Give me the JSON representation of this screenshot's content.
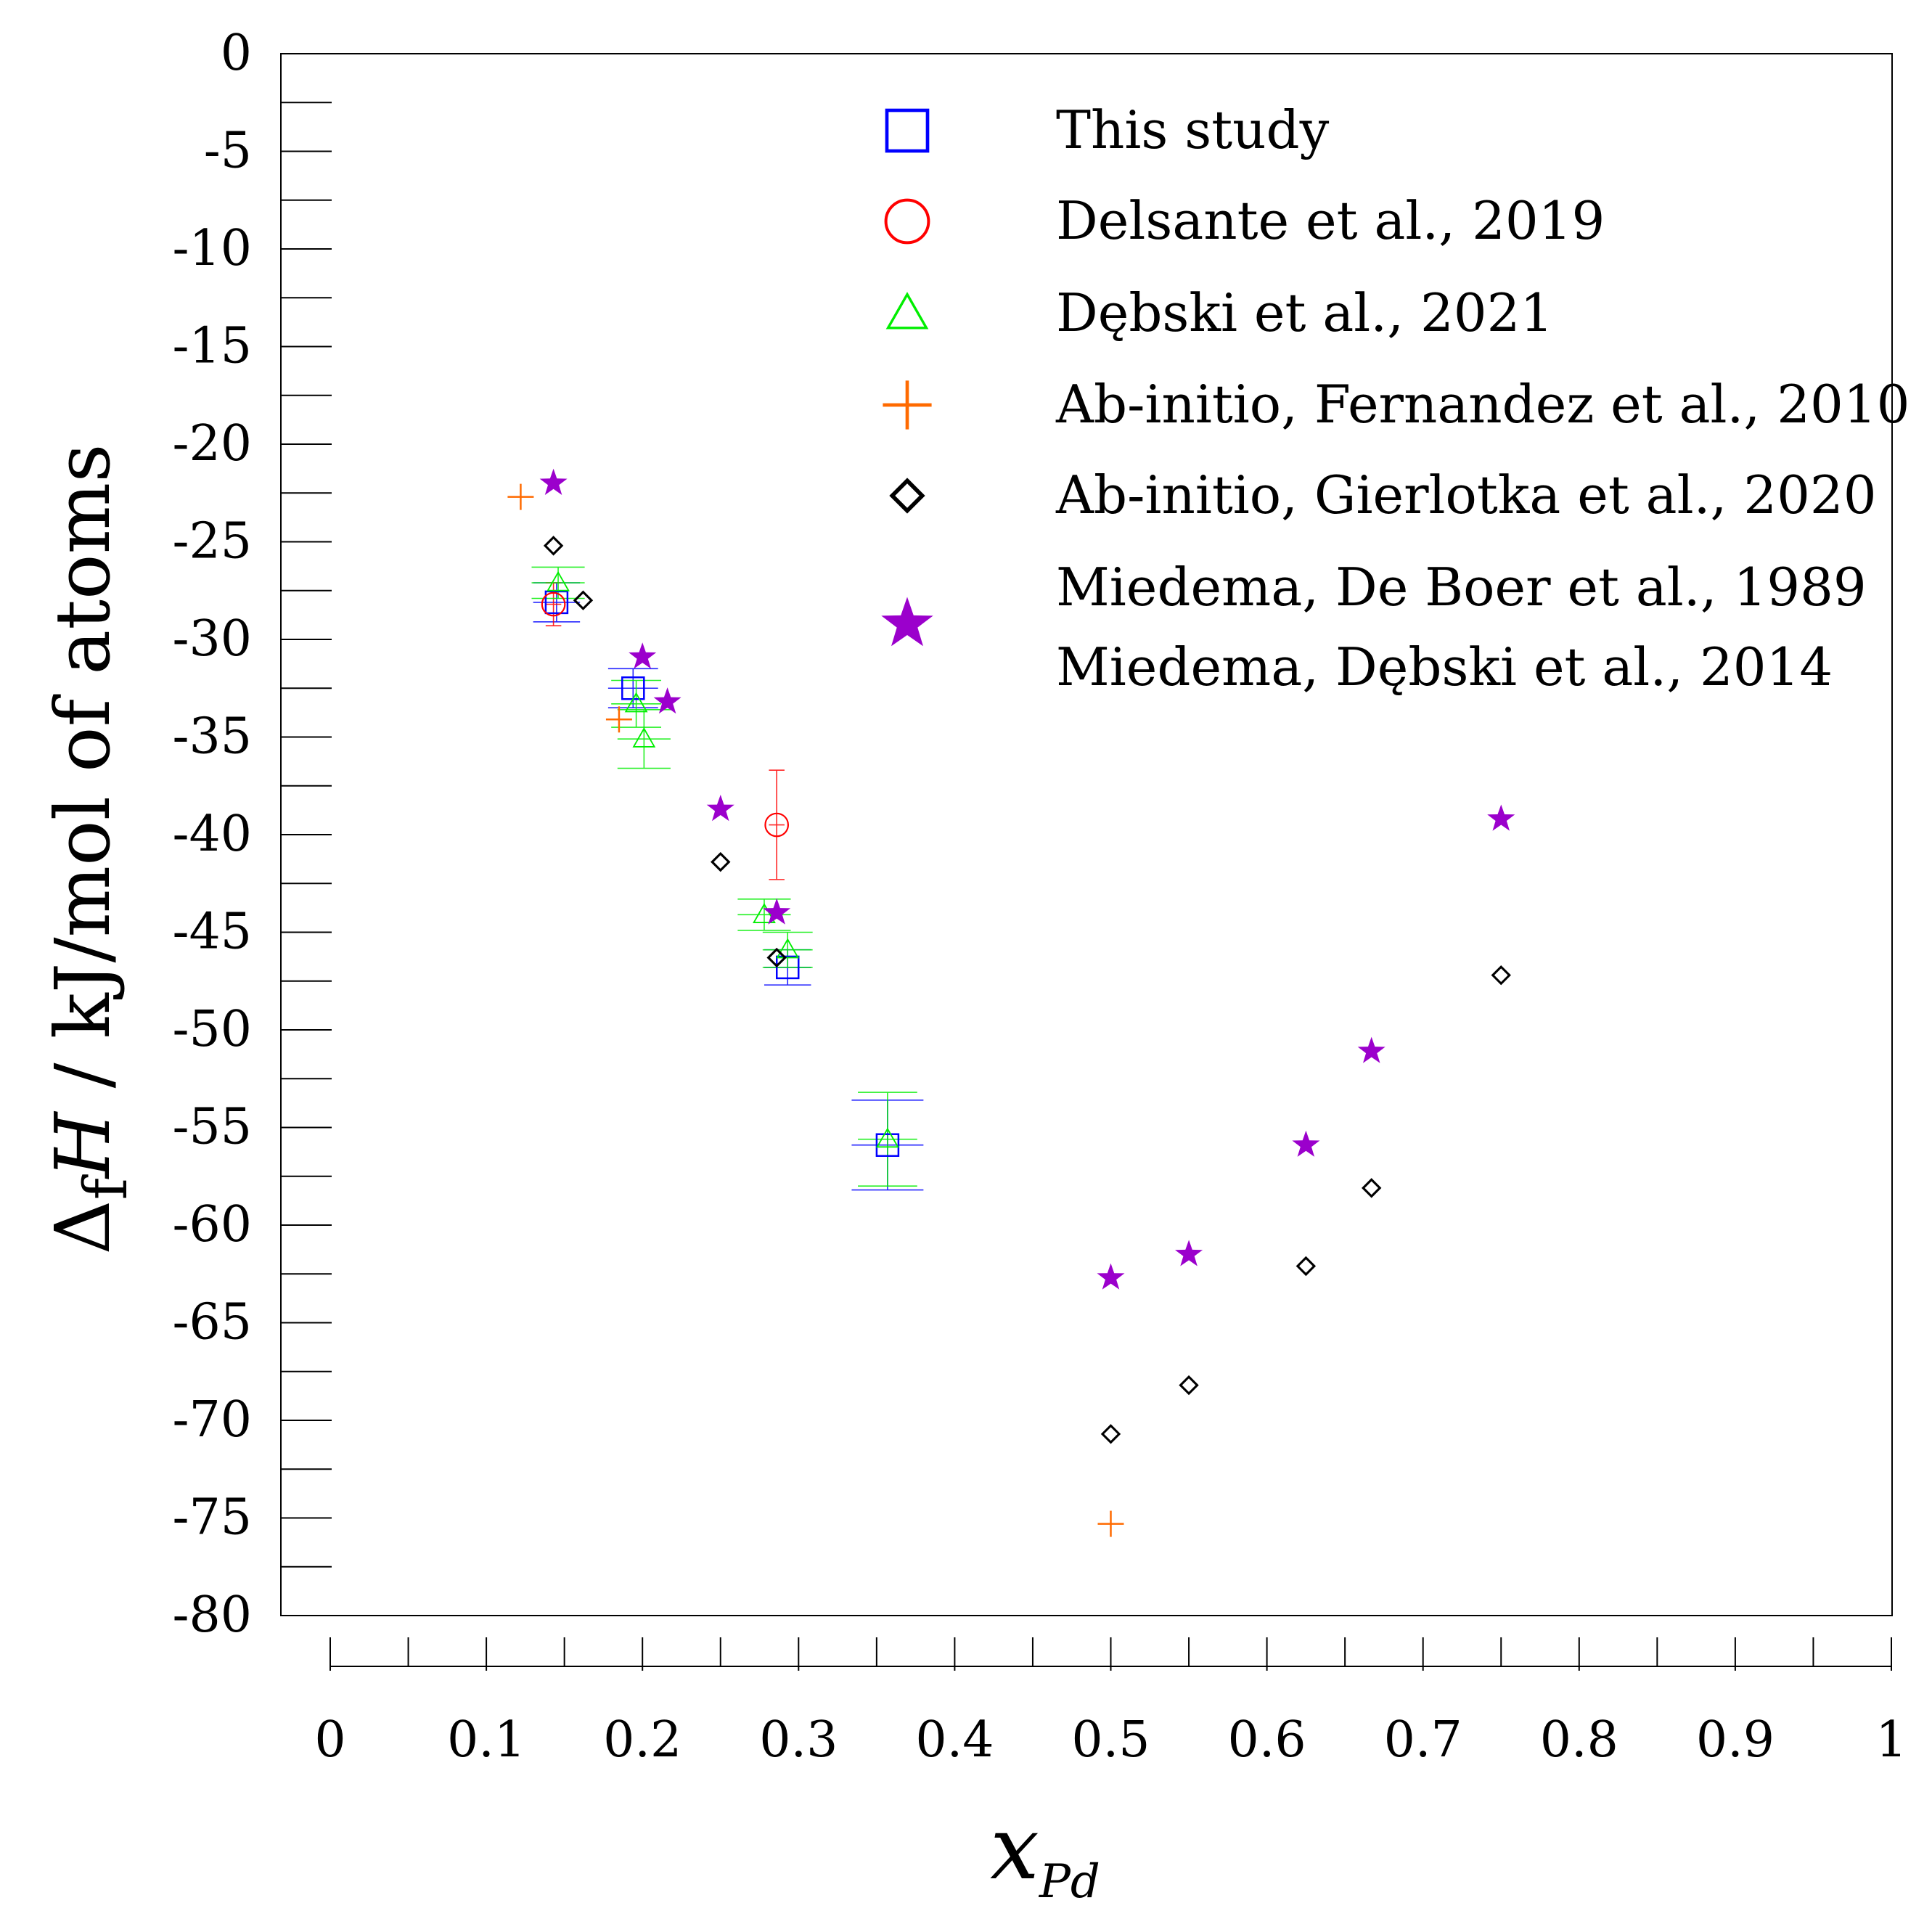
{
  "chart_data": {
    "type": "scatter",
    "title": "",
    "ylabel": {
      "prefix": "Δ",
      "sub": "f",
      "var": "H",
      "rest": " / kJ/mol of atoms"
    },
    "xlabel": {
      "var": "x",
      "sub": "Pd"
    },
    "xlim": [
      0,
      1
    ],
    "ylim": [
      -80,
      0
    ],
    "xticks": [
      0,
      0.1,
      0.2,
      0.3,
      0.4,
      0.5,
      0.6,
      0.7,
      0.8,
      0.9,
      1
    ],
    "xtick_labels": [
      "0",
      "0.1",
      "0.2",
      "0.3",
      "0.4",
      "0.5",
      "0.6",
      "0.7",
      "0.8",
      "0.9",
      "1"
    ],
    "yticks": [
      0,
      -5,
      -10,
      -15,
      -20,
      -25,
      -30,
      -35,
      -40,
      -45,
      -50,
      -55,
      -60,
      -65,
      -70,
      -75,
      -80
    ],
    "ytick_labels": [
      "0",
      "-5",
      "-10",
      "-15",
      "-20",
      "-25",
      "-30",
      "-35",
      "-40",
      "-45",
      "-50",
      "-55",
      "-60",
      "-65",
      "-70",
      "-75",
      "-80"
    ],
    "grid": false,
    "legend_position": "top-right",
    "series": [
      {
        "name": "This study",
        "marker": "square",
        "color": "#0000ff",
        "points": [
          {
            "x": 0.145,
            "y": -28.1,
            "yerr": 1.0,
            "xerr": 0.015
          },
          {
            "x": 0.194,
            "y": -32.5,
            "yerr": 1.0,
            "xerr": 0.016
          },
          {
            "x": 0.293,
            "y": -46.8,
            "yerr": 0.9,
            "xerr": 0.015
          },
          {
            "x": 0.357,
            "y": -55.9,
            "yerr": 2.3,
            "xerr": 0.023
          }
        ]
      },
      {
        "name": "Delsante et al., 2019",
        "marker": "circle",
        "color": "#ff0000",
        "points": [
          {
            "x": 0.143,
            "y": -28.2,
            "yerr": 1.1,
            "xerr": 0.005
          },
          {
            "x": 0.286,
            "y": -39.5,
            "yerr": 2.8,
            "xerr": 0.005
          }
        ]
      },
      {
        "name": "Dębski et al., 2021",
        "marker": "triangle",
        "color": "#00ee00",
        "points": [
          {
            "x": 0.146,
            "y": -27.1,
            "yerr": 0.8,
            "xerr": 0.017
          },
          {
            "x": 0.196,
            "y": -33.3,
            "yerr": 1.2,
            "xerr": 0.016
          },
          {
            "x": 0.201,
            "y": -35.1,
            "yerr": 1.5,
            "xerr": 0.017
          },
          {
            "x": 0.278,
            "y": -44.1,
            "yerr": 0.8,
            "xerr": 0.017
          },
          {
            "x": 0.293,
            "y": -45.9,
            "yerr": 0.9,
            "xerr": 0.016
          },
          {
            "x": 0.357,
            "y": -55.6,
            "yerr": 2.4,
            "xerr": 0.019
          }
        ]
      },
      {
        "name": "Ab-initio, Fernandez et al., 2010",
        "marker": "plus",
        "color": "#ff6a00",
        "points": [
          {
            "x": 0.122,
            "y": -22.7
          },
          {
            "x": 0.185,
            "y": -34.1
          },
          {
            "x": 0.5,
            "y": -75.3
          }
        ]
      },
      {
        "name": "Ab-initio, Gierlotka et al., 2020",
        "marker": "diamond",
        "color": "#000000",
        "points": [
          {
            "x": 0.143,
            "y": -25.2
          },
          {
            "x": 0.162,
            "y": -28.0
          },
          {
            "x": 0.25,
            "y": -41.4
          },
          {
            "x": 0.286,
            "y": -46.3
          },
          {
            "x": 0.5,
            "y": -70.7
          },
          {
            "x": 0.55,
            "y": -68.2
          },
          {
            "x": 0.625,
            "y": -62.1
          },
          {
            "x": 0.667,
            "y": -58.1
          },
          {
            "x": 0.75,
            "y": -47.2
          }
        ]
      },
      {
        "name": "Miedema, De Boer et al., 1989",
        "name2": "Miedema, Dębski et al., 2014",
        "marker": "star",
        "color": "#9b00cc",
        "points": [
          {
            "x": 0.143,
            "y": -22.0
          },
          {
            "x": 0.2,
            "y": -30.9
          },
          {
            "x": 0.216,
            "y": -33.2
          },
          {
            "x": 0.25,
            "y": -38.7
          },
          {
            "x": 0.286,
            "y": -44.0
          },
          {
            "x": 0.5,
            "y": -62.7
          },
          {
            "x": 0.55,
            "y": -61.5
          },
          {
            "x": 0.625,
            "y": -55.9
          },
          {
            "x": 0.667,
            "y": -51.1
          },
          {
            "x": 0.75,
            "y": -39.2
          }
        ]
      }
    ]
  }
}
